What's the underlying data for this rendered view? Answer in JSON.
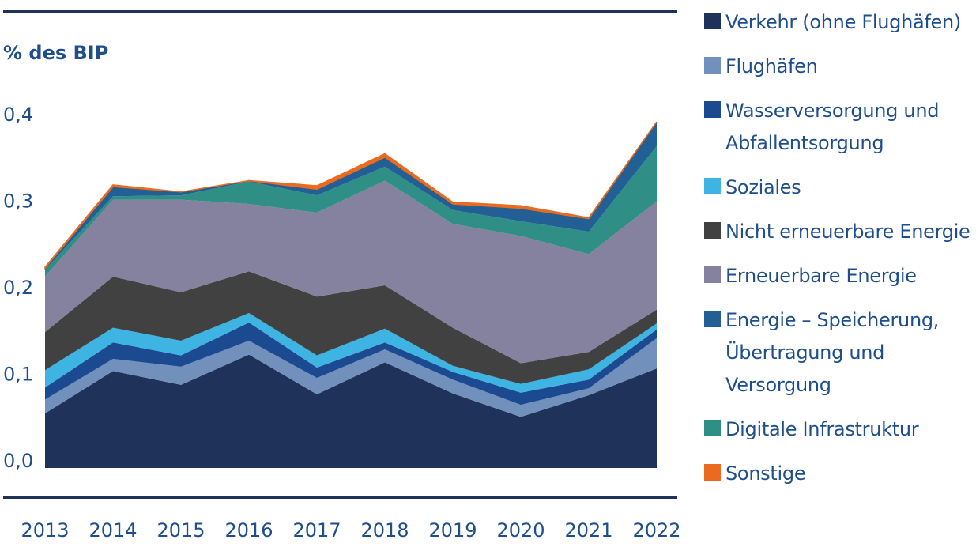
{
  "chart_data": {
    "type": "area",
    "stacked": true,
    "title": "",
    "ylabel": "% des BIP",
    "xlabel": "",
    "ylim": [
      0,
      0.4
    ],
    "yticks": [
      0.0,
      0.1,
      0.2,
      0.3,
      0.4
    ],
    "ytick_labels": [
      "0,0",
      "0,1",
      "0,2",
      "0,3",
      "0,4"
    ],
    "grid": false,
    "legend_position": "right",
    "categories": [
      "2013",
      "2014",
      "2015",
      "2016",
      "2017",
      "2018",
      "2019",
      "2020",
      "2021",
      "2022"
    ],
    "series": [
      {
        "name": "Verkehr (ohne Flughäfen)",
        "color": "#1f3259",
        "values": [
          0.063,
          0.112,
          0.096,
          0.131,
          0.085,
          0.122,
          0.086,
          0.059,
          0.084,
          0.115
        ]
      },
      {
        "name": "Flughäfen",
        "color": "#7190bb",
        "values": [
          0.016,
          0.014,
          0.021,
          0.016,
          0.019,
          0.015,
          0.016,
          0.014,
          0.008,
          0.035
        ]
      },
      {
        "name": "Wasserversorgung und Abfallentsorgung",
        "color": "#1c4a91",
        "values": [
          0.014,
          0.019,
          0.013,
          0.021,
          0.012,
          0.008,
          0.009,
          0.014,
          0.01,
          0.01
        ]
      },
      {
        "name": "Soziales",
        "color": "#3eb4e3",
        "values": [
          0.02,
          0.017,
          0.017,
          0.011,
          0.014,
          0.016,
          0.007,
          0.01,
          0.012,
          0.007
        ]
      },
      {
        "name": "Nicht erneuerbare Energie",
        "color": "#414141",
        "values": [
          0.044,
          0.059,
          0.056,
          0.048,
          0.068,
          0.05,
          0.044,
          0.024,
          0.02,
          0.016
        ]
      },
      {
        "name": "Erneuerbare Energie",
        "color": "#85829f",
        "values": [
          0.064,
          0.089,
          0.107,
          0.078,
          0.097,
          0.121,
          0.12,
          0.147,
          0.113,
          0.125
        ]
      },
      {
        "name": "Energie – Speicherung, Übertragung und Versorgung",
        "color": "#215f95",
        "values": [
          0.002,
          0.011,
          0.004,
          0.001,
          0.007,
          0.011,
          0.007,
          0.015,
          0.015,
          0.028
        ],
        "stack_order": 7
      },
      {
        "name": "Digitale Infrastruktur",
        "color": "#2f8f87",
        "values": [
          0.008,
          0.004,
          0.005,
          0.026,
          0.02,
          0.016,
          0.016,
          0.017,
          0.026,
          0.064
        ],
        "stack_order": 6
      },
      {
        "name": "Sonstige",
        "color": "#ea6a1f",
        "values": [
          0.001,
          0.002,
          0.0,
          0.0,
          0.004,
          0.004,
          0.002,
          0.003,
          0.001,
          0.0
        ]
      }
    ]
  },
  "legend": {
    "items": [
      {
        "lines": [
          "Verkehr (ohne Flughäfen)"
        ],
        "color": "#1f3259"
      },
      {
        "lines": [
          "Flughäfen"
        ],
        "color": "#7190bb"
      },
      {
        "lines": [
          "Wasserversorgung und",
          "Abfallentsorgung"
        ],
        "color": "#1c4a91"
      },
      {
        "lines": [
          "Soziales"
        ],
        "color": "#3eb4e3"
      },
      {
        "lines": [
          "Nicht erneuerbare Energie"
        ],
        "color": "#414141"
      },
      {
        "lines": [
          "Erneuerbare Energie"
        ],
        "color": "#85829f"
      },
      {
        "lines": [
          "Energie – Speicherung,",
          "Übertragung und",
          "Versorgung"
        ],
        "color": "#215f95"
      },
      {
        "lines": [
          "Digitale Infrastruktur"
        ],
        "color": "#2f8f87"
      },
      {
        "lines": [
          "Sonstige"
        ],
        "color": "#ea6a1f"
      }
    ]
  },
  "colors": {
    "text": "#1f4e8c",
    "rule": "#1f3259"
  }
}
